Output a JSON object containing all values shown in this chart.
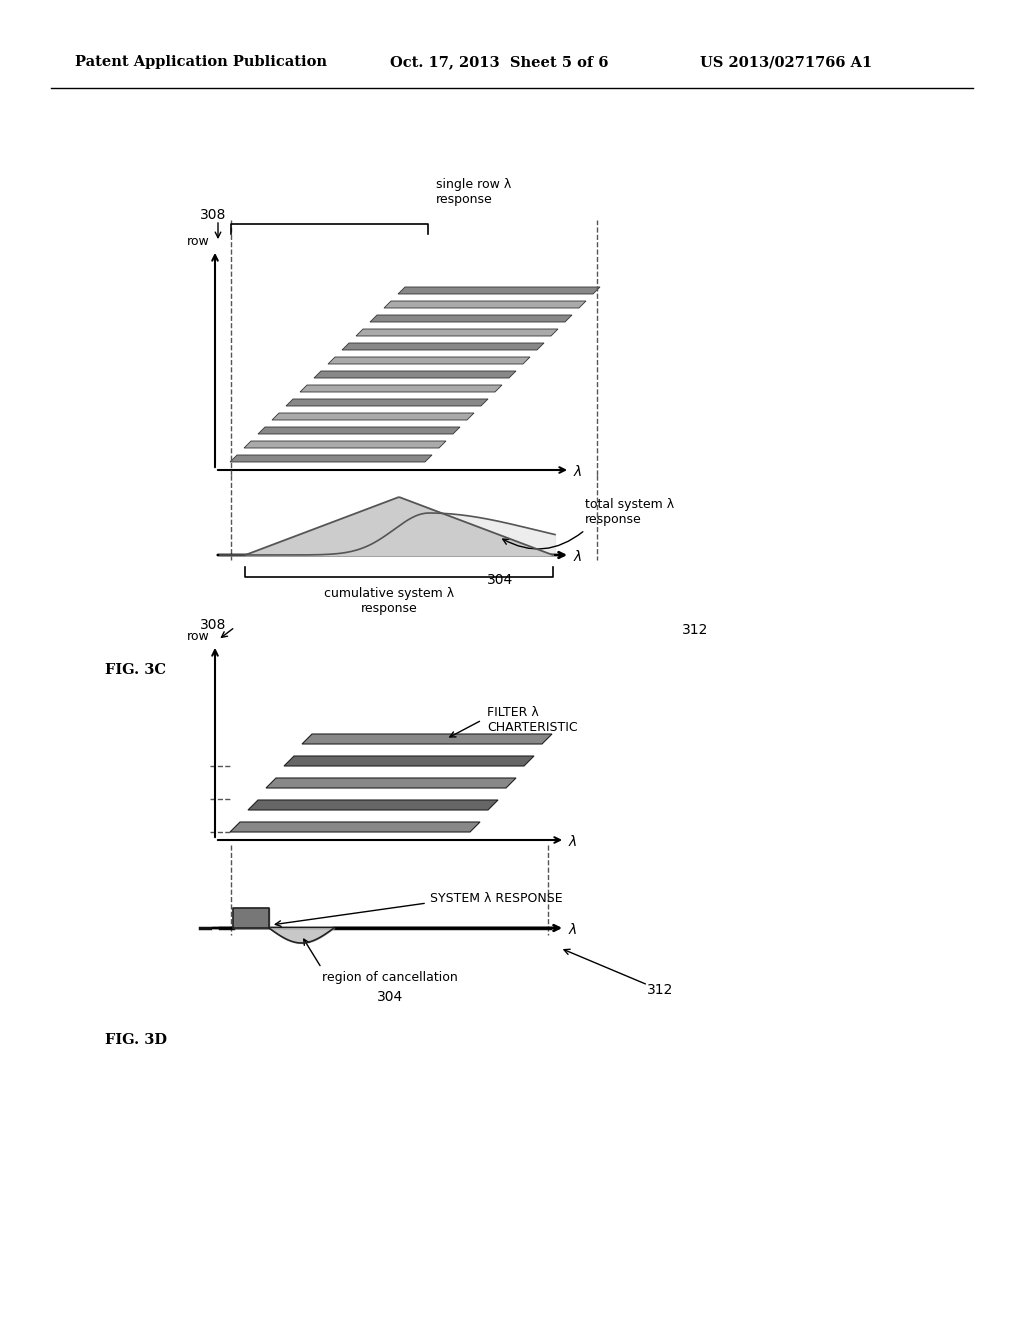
{
  "header_left": "Patent Application Publication",
  "header_mid": "Oct. 17, 2013  Sheet 5 of 6",
  "header_right": "US 2013/0271766 A1",
  "fig3c_label": "FIG. 3C",
  "fig3d_label": "FIG. 3D",
  "label_308": "308",
  "label_304": "304",
  "label_312": "312",
  "label_row": "row",
  "label_lambda": "λ",
  "label_single_row": "single row λ\nresponse",
  "label_cumulative": "cumulative system λ\nresponse",
  "label_total": "total system λ\nresponse",
  "label_filter": "FILTER λ\nCHARTERISTIC",
  "label_system_response": "SYSTEM λ RESPONSE",
  "label_cancellation": "region of cancellation",
  "bg_color": "#ffffff",
  "line_color": "#000000",
  "gray_fill": "#aaaaaa",
  "light_gray_fill": "#cccccc"
}
